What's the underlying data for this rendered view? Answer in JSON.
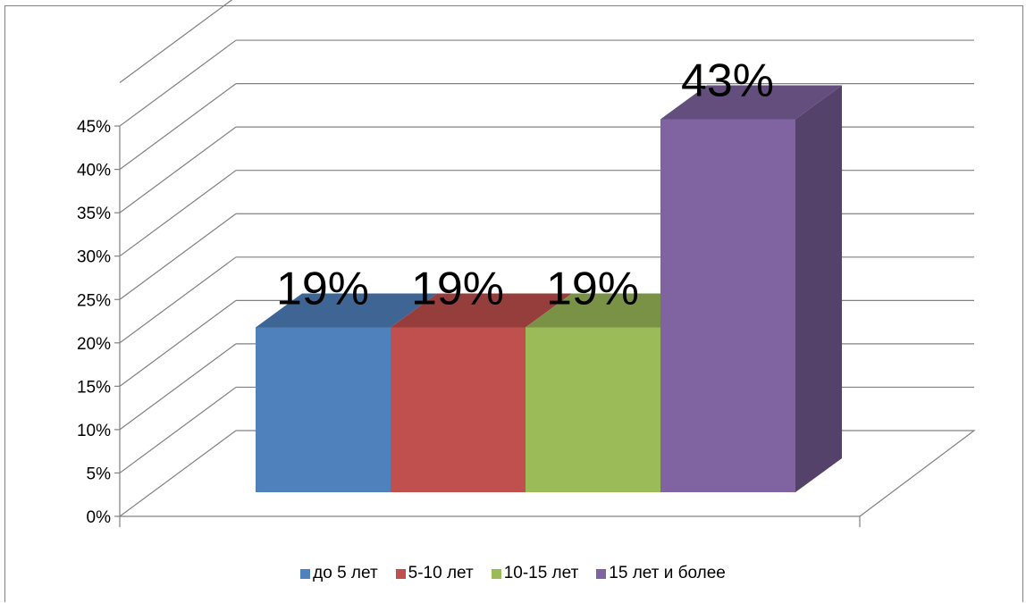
{
  "chart_data": {
    "type": "bar",
    "categories": [
      "до 5 лет",
      "5-10 лет",
      "10-15 лет",
      "15 лет и более"
    ],
    "values": [
      19,
      19,
      19,
      43
    ],
    "data_labels": [
      "19%",
      "19%",
      "19%",
      "43%"
    ],
    "colors": [
      "#4f81bd",
      "#c0504d",
      "#9bbb59",
      "#8064a2"
    ],
    "ylim": [
      0,
      45
    ],
    "yticks": [
      "0%",
      "5%",
      "10%",
      "15%",
      "20%",
      "25%",
      "30%",
      "35%",
      "40%",
      "45%"
    ],
    "grid": true,
    "style": "3d-column",
    "legend": "bottom",
    "title": "",
    "xlabel": "",
    "ylabel": ""
  }
}
